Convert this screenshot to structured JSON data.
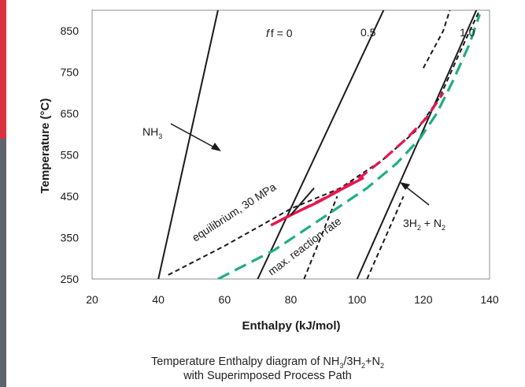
{
  "colors": {
    "accent_red": "#d9323c",
    "accent_grey": "#5e646b",
    "line": "#1a1a1a",
    "magenta": "#e8164f",
    "green": "#1fae84"
  },
  "chart_data": {
    "type": "line",
    "xlabel": "Enthalpy (kJ/mol)",
    "ylabel": "Temperature (°C)",
    "xlim": [
      20,
      140
    ],
    "ylim": [
      250,
      900
    ],
    "xticks": [
      "20",
      "40",
      "60",
      "80",
      "100",
      "120",
      "140"
    ],
    "yticks": [
      "250",
      "350",
      "450",
      "550",
      "650",
      "750",
      "850"
    ],
    "grid": false,
    "legend": "none",
    "caption_line1": {
      "pre": "Temperature Enthalpy diagram of NH",
      "s1": "3",
      "mid1": "/3H",
      "s2": "2",
      "mid2": "+N",
      "s3": "2"
    },
    "caption_line2": "with Superimposed Process Path",
    "series": [
      {
        "style": "solid-black",
        "points": [
          [
            40,
            250
          ],
          [
            58,
            900
          ]
        ]
      },
      {
        "style": "solid-black",
        "points": [
          [
            70,
            250
          ],
          [
            108,
            900
          ]
        ]
      },
      {
        "style": "solid-black",
        "points": [
          [
            100,
            250
          ],
          [
            136,
            900
          ]
        ]
      },
      {
        "style": "dashed-black",
        "points": [
          [
            84,
            250
          ],
          [
            94,
            450
          ]
        ]
      },
      {
        "style": "dashed-black",
        "points": [
          [
            103,
            250
          ],
          [
            114,
            450
          ]
        ]
      },
      {
        "style": "dashed-black",
        "points": [
          [
            120,
            760
          ],
          [
            126,
            850
          ],
          [
            128,
            900
          ]
        ]
      },
      {
        "style": "dashed-black",
        "points": [
          [
            43,
            260
          ],
          [
            60,
            330
          ],
          [
            80,
            420
          ],
          [
            95,
            470
          ],
          [
            108,
            540
          ],
          [
            118,
            610
          ],
          [
            125,
            690
          ],
          [
            130,
            780
          ],
          [
            134,
            850
          ],
          [
            137,
            900
          ]
        ]
      },
      {
        "style": "dashed-magenta",
        "points": [
          [
            74,
            380
          ],
          [
            90,
            445
          ],
          [
            100,
            490
          ],
          [
            108,
            540
          ],
          [
            115,
            590
          ],
          [
            121,
            640
          ],
          [
            126,
            700
          ]
        ]
      },
      {
        "style": "dashed-green",
        "points": [
          [
            58,
            250
          ],
          [
            75,
            320
          ],
          [
            90,
            400
          ],
          [
            103,
            470
          ],
          [
            112,
            530
          ],
          [
            119,
            590
          ],
          [
            124,
            650
          ],
          [
            129,
            730
          ],
          [
            134,
            820
          ],
          [
            137,
            890
          ]
        ]
      },
      {
        "style": "solid-magenta",
        "points": [
          [
            74,
            380
          ],
          [
            80,
            405
          ],
          [
            88,
            435
          ],
          [
            96,
            470
          ],
          [
            102,
            495
          ]
        ]
      },
      {
        "style": "solid-black",
        "points": [
          [
            80,
            405
          ],
          [
            87,
            470
          ]
        ]
      }
    ],
    "annotations": {
      "f0": "f = 0",
      "f05": "0.5",
      "f10": "1.0",
      "nh3": {
        "base": "NH",
        "sub": "3"
      },
      "h2n2": {
        "a": "3H",
        "s1": "2",
        "b": " + N",
        "s2": "2"
      },
      "equilibrium": "equilibrium, 30 MPa",
      "rate": "max. reaction rate"
    }
  }
}
